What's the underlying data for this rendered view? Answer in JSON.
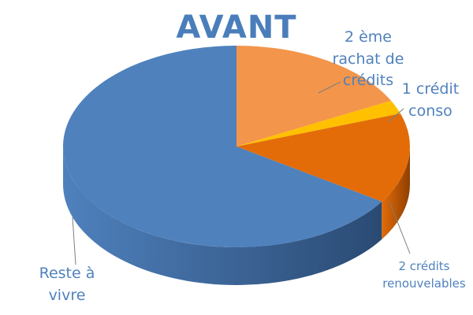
{
  "chart_data": {
    "type": "pie",
    "title": "AVANT",
    "slices": [
      {
        "name": "2 ème rachat de crédits",
        "value": 17.5,
        "color": "#f3954a",
        "side_color": "#c7712b",
        "label_lines": [
          "2 ème",
          "rachat de",
          "crédits"
        ]
      },
      {
        "name": "1 crédit conso",
        "value": 2.2,
        "color": "#ffc000",
        "side_color": "#d59f00",
        "label_lines": [
          "1 crédit",
          "conso"
        ]
      },
      {
        "name": "2 crédits renouvelables",
        "value": 14.5,
        "color": "#e36c09",
        "side_color": "#8f3f00",
        "label_lines": [
          "2 crédits",
          "renouvelables"
        ]
      },
      {
        "name": "Reste à vivre",
        "value": 65.8,
        "color": "#4f81bd",
        "side_color": "#2a4a73",
        "label_lines": [
          "Reste à",
          "vivre"
        ]
      }
    ],
    "label_colors": {
      "2 ème rachat de crédits": "#4f81bd",
      "1 crédit conso": "#4f81bd",
      "2 crédits renouvelables": "#4f81bd",
      "Reste à vivre": "#4f81bd"
    },
    "legend": "none"
  }
}
